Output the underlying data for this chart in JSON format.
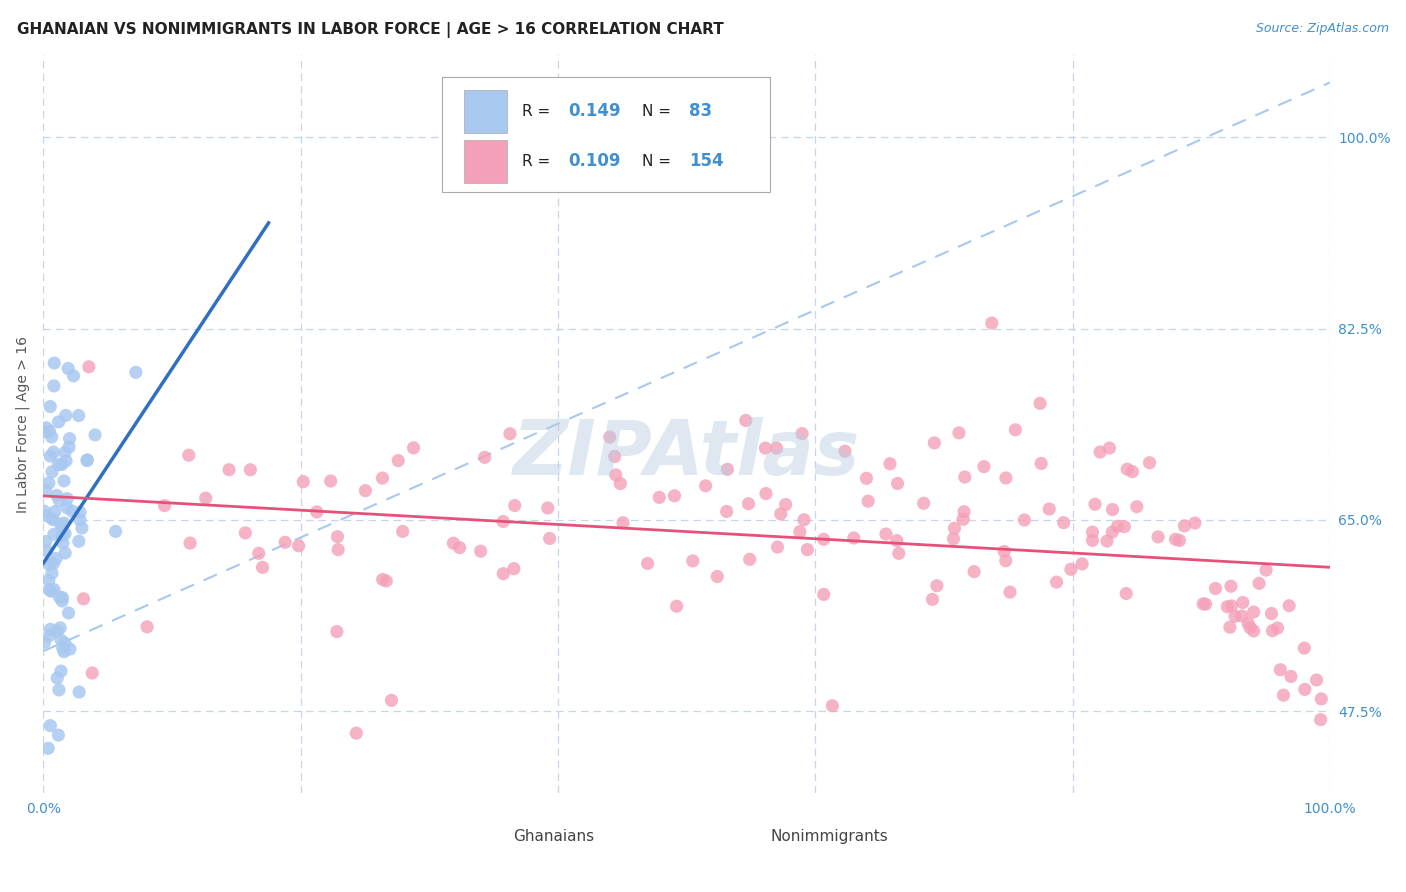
{
  "title": "GHANAIAN VS NONIMMIGRANTS IN LABOR FORCE | AGE > 16 CORRELATION CHART",
  "source": "Source: ZipAtlas.com",
  "ylabel": "In Labor Force | Age > 16",
  "watermark": "ZIPAtlas",
  "xlim": [
    0.0,
    1.0
  ],
  "ylim": [
    0.4,
    1.075
  ],
  "y_tick_labels_right": [
    "100.0%",
    "82.5%",
    "65.0%",
    "47.5%"
  ],
  "y_tick_values_right": [
    1.0,
    0.825,
    0.65,
    0.475
  ],
  "ghanaian_color": "#a8c8f0",
  "nonimmigrant_color": "#f4a0b8",
  "ghanaian_line_color": "#3070c0",
  "nonimmigrant_line_color": "#e8507a",
  "dashed_line_color": "#a8c8f0",
  "legend_R_ghanaian": "0.149",
  "legend_N_ghanaian": "83",
  "legend_R_nonimmigrant": "0.109",
  "legend_N_nonimmigrant": "154",
  "title_fontsize": 11,
  "tick_fontsize": 10,
  "background_color": "#ffffff",
  "grid_color": "#c8d4e8",
  "gh_seed": 42,
  "ni_seed": 99
}
